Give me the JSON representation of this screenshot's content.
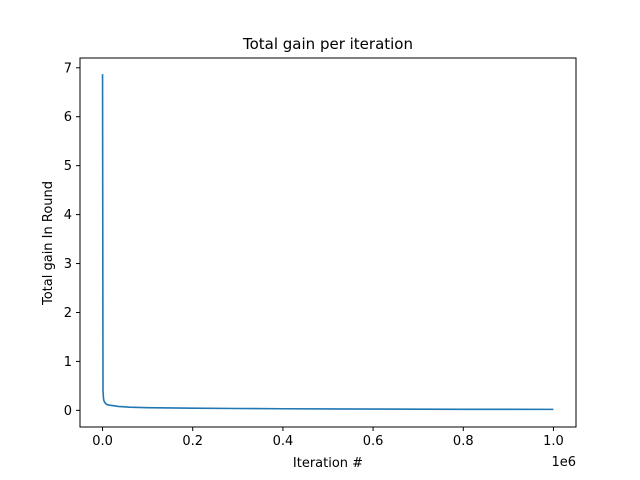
{
  "chart_data": {
    "type": "line",
    "title": "Total gain per iteration",
    "xlabel": "Iteration #",
    "ylabel": "Total gain In Round",
    "x_offset_label": "1e6",
    "xlim": [
      -50000,
      1050000
    ],
    "ylim": [
      -0.34,
      7.2
    ],
    "x_ticks": [
      0,
      200000,
      400000,
      600000,
      800000,
      1000000
    ],
    "x_tick_labels": [
      "0.0",
      "0.2",
      "0.4",
      "0.6",
      "0.8",
      "1.0"
    ],
    "y_ticks": [
      0,
      1,
      2,
      3,
      4,
      5,
      6,
      7
    ],
    "y_tick_labels": [
      "0",
      "1",
      "2",
      "3",
      "4",
      "5",
      "6",
      "7"
    ],
    "grid": false,
    "series": [
      {
        "color": "#1f77b4",
        "x": [
          0,
          1000,
          2000,
          3000,
          5000,
          8000,
          12000,
          20000,
          35000,
          60000,
          100000,
          200000,
          300000,
          400000,
          500000,
          600000,
          700000,
          800000,
          900000,
          1000000
        ],
        "y": [
          6.87,
          0.4,
          0.25,
          0.2,
          0.16,
          0.13,
          0.11,
          0.1,
          0.08,
          0.065,
          0.055,
          0.045,
          0.038,
          0.033,
          0.029,
          0.026,
          0.024,
          0.022,
          0.021,
          0.02
        ]
      }
    ]
  }
}
